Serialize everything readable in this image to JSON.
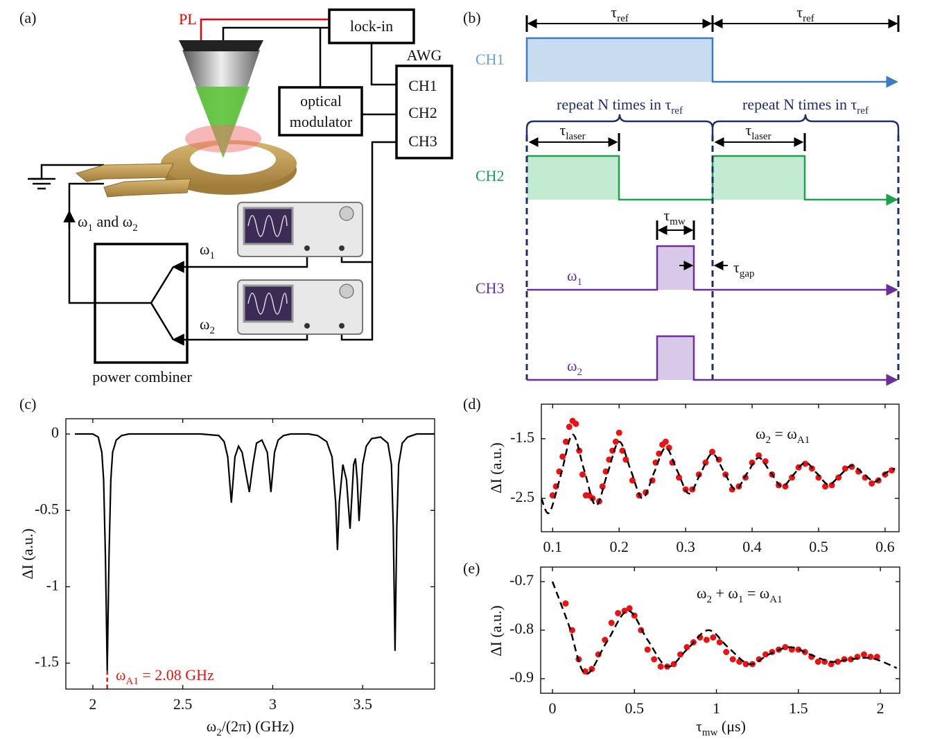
{
  "panels": [
    "(a)",
    "(b)",
    "(c)",
    "(d)",
    "(e)"
  ],
  "setup": {
    "pl": "PL",
    "lockin": "lock-in",
    "awg": "AWG",
    "channels": [
      "CH1",
      "CH2",
      "CH3"
    ],
    "modulator": [
      "optical",
      "modulator"
    ],
    "input": [
      "ω",
      "1",
      " and ω",
      "2"
    ],
    "omega1": [
      "ω",
      "1"
    ],
    "omega2": [
      "ω",
      "2"
    ],
    "combiner": "power combiner"
  },
  "timing": {
    "tau_ref": [
      "τ",
      "ref"
    ],
    "channels": [
      "CH1",
      "CH2",
      "CH3"
    ],
    "repeat": [
      "repeat N times in τ",
      "ref"
    ],
    "tau_laser": [
      "τ",
      "laser"
    ],
    "tau_mw": [
      "τ",
      "mw"
    ],
    "tau_gap": [
      "τ",
      "gap"
    ],
    "omega1": [
      "ω",
      "1"
    ],
    "omega2": [
      "ω",
      "2"
    ]
  },
  "chart_data": [
    {
      "type": "line",
      "xlabel": [
        "ω",
        "2",
        "/(2π) (GHz)"
      ],
      "ylabel": "ΔI (a.u.)",
      "annotation": [
        "ω",
        "A1",
        " = 2.08 GHz"
      ],
      "marker_x": 2.08,
      "annotation_color": "#e8140f",
      "xlim": [
        1.85,
        3.9
      ],
      "ylim": [
        -1.67,
        0.1
      ],
      "xticks": [
        2,
        2.5,
        3,
        3.5
      ],
      "yticks": [
        0,
        -0.5,
        -1,
        -1.5
      ],
      "series": [
        {
          "color": "#000000",
          "style": "solid",
          "x": [
            1.9,
            1.95,
            2.0,
            2.03,
            2.05,
            2.06,
            2.07,
            2.08,
            2.09,
            2.1,
            2.11,
            2.13,
            2.16,
            2.2,
            2.3,
            2.4,
            2.5,
            2.6,
            2.7,
            2.73,
            2.75,
            2.77,
            2.79,
            2.81,
            2.83,
            2.85,
            2.87,
            2.89,
            2.91,
            2.94,
            2.97,
            2.99,
            3.01,
            3.03,
            3.06,
            3.1,
            3.2,
            3.25,
            3.3,
            3.33,
            3.35,
            3.36,
            3.37,
            3.39,
            3.41,
            3.43,
            3.45,
            3.46,
            3.47,
            3.48,
            3.5,
            3.52,
            3.55,
            3.6,
            3.64,
            3.66,
            3.67,
            3.68,
            3.69,
            3.7,
            3.72,
            3.75,
            3.8,
            3.9
          ],
          "values": [
            0,
            0,
            0,
            -0.02,
            -0.12,
            -0.3,
            -0.8,
            -1.55,
            -0.8,
            -0.3,
            -0.12,
            -0.04,
            -0.01,
            0,
            0,
            0,
            0,
            0,
            -0.01,
            -0.05,
            -0.15,
            -0.45,
            -0.15,
            -0.08,
            -0.12,
            -0.25,
            -0.38,
            -0.2,
            -0.06,
            -0.04,
            -0.12,
            -0.38,
            -0.12,
            -0.04,
            -0.01,
            0,
            0,
            -0.01,
            -0.05,
            -0.15,
            -0.45,
            -0.76,
            -0.45,
            -0.2,
            -0.3,
            -0.62,
            -0.2,
            -0.16,
            -0.3,
            -0.57,
            -0.2,
            -0.08,
            -0.03,
            -0.02,
            -0.06,
            -0.2,
            -0.6,
            -1.42,
            -0.6,
            -0.2,
            -0.06,
            -0.02,
            0,
            0
          ]
        }
      ]
    },
    {
      "type": "scatter",
      "ylabel": "ΔI (a.u.)",
      "annotation": [
        "ω",
        "2",
        " = ω",
        "A1"
      ],
      "xlim": [
        0.083,
        0.621
      ],
      "ylim": [
        -3.06,
        -0.92
      ],
      "xticks": [
        0.1,
        0.2,
        0.3,
        0.4,
        0.5,
        0.6
      ],
      "yticks": [
        -1.5,
        -2.5
      ],
      "series": [
        {
          "color": "#ee1111",
          "style": "markers",
          "x": [
            0.1,
            0.105,
            0.11,
            0.115,
            0.12,
            0.125,
            0.13,
            0.135,
            0.14,
            0.145,
            0.15,
            0.155,
            0.16,
            0.17,
            0.175,
            0.18,
            0.185,
            0.19,
            0.195,
            0.2,
            0.205,
            0.21,
            0.22,
            0.23,
            0.24,
            0.25,
            0.255,
            0.26,
            0.265,
            0.27,
            0.275,
            0.28,
            0.29,
            0.3,
            0.31,
            0.32,
            0.33,
            0.34,
            0.35,
            0.36,
            0.37,
            0.38,
            0.39,
            0.4,
            0.41,
            0.42,
            0.43,
            0.44,
            0.45,
            0.46,
            0.47,
            0.48,
            0.49,
            0.5,
            0.51,
            0.52,
            0.53,
            0.54,
            0.55,
            0.56,
            0.57,
            0.58,
            0.59,
            0.6,
            0.61
          ],
          "values": [
            -2.45,
            -2.3,
            -2.05,
            -1.8,
            -1.55,
            -1.3,
            -1.2,
            -1.25,
            -1.7,
            -2.1,
            -2.45,
            -2.45,
            -2.5,
            -2.55,
            -2.3,
            -2.05,
            -1.85,
            -1.7,
            -1.55,
            -1.4,
            -1.7,
            -1.85,
            -2.2,
            -2.45,
            -2.4,
            -2.2,
            -1.9,
            -1.75,
            -1.6,
            -1.55,
            -1.65,
            -1.9,
            -2.15,
            -2.35,
            -2.35,
            -2.1,
            -1.9,
            -1.72,
            -1.85,
            -2.1,
            -2.35,
            -2.3,
            -2.15,
            -1.9,
            -1.78,
            -1.88,
            -2.1,
            -2.28,
            -2.3,
            -2.15,
            -1.98,
            -1.92,
            -2.0,
            -2.15,
            -2.3,
            -2.28,
            -2.15,
            -2.0,
            -1.97,
            -2.05,
            -2.15,
            -2.25,
            -2.2,
            -2.1,
            -2.03
          ]
        },
        {
          "color": "#000000",
          "style": "dashed",
          "x": [
            0.083,
            0.095,
            0.1125,
            0.13,
            0.1475,
            0.165,
            0.1825,
            0.2,
            0.2175,
            0.235,
            0.2525,
            0.27,
            0.2875,
            0.305,
            0.3225,
            0.34,
            0.3575,
            0.375,
            0.3925,
            0.41,
            0.4275,
            0.445,
            0.4625,
            0.48,
            0.4975,
            0.515,
            0.5325,
            0.55,
            0.5675,
            0.585,
            0.6,
            0.615
          ],
          "values": [
            -2.5,
            -2.74,
            -2.1,
            -1.43,
            -2.03,
            -2.62,
            -2.08,
            -1.55,
            -2.03,
            -2.5,
            -2.07,
            -1.65,
            -2.04,
            -2.42,
            -2.08,
            -1.75,
            -2.05,
            -2.35,
            -2.08,
            -1.82,
            -2.06,
            -2.3,
            -2.1,
            -1.9,
            -2.08,
            -2.27,
            -2.11,
            -1.95,
            -2.09,
            -2.22,
            -2.08,
            -2.0
          ]
        }
      ]
    },
    {
      "type": "scatter",
      "xlabel": [
        "τ",
        "mw",
        " (μs)"
      ],
      "ylabel": "ΔI (a.u.)",
      "annotation": [
        "ω",
        "2",
        " + ω",
        "1",
        " = ω",
        "A1"
      ],
      "xlim": [
        -0.072,
        2.118
      ],
      "ylim": [
        -0.93,
        -0.67
      ],
      "xticks": [
        0,
        0.5,
        1,
        1.5,
        2
      ],
      "yticks": [
        -0.7,
        -0.8,
        -0.9
      ],
      "series": [
        {
          "color": "#ee1111",
          "style": "markers",
          "x": [
            0.08,
            0.12,
            0.16,
            0.2,
            0.24,
            0.28,
            0.32,
            0.36,
            0.4,
            0.44,
            0.47,
            0.5,
            0.54,
            0.58,
            0.62,
            0.66,
            0.7,
            0.74,
            0.78,
            0.82,
            0.86,
            0.9,
            0.94,
            0.98,
            1.02,
            1.06,
            1.1,
            1.14,
            1.18,
            1.22,
            1.26,
            1.3,
            1.34,
            1.38,
            1.42,
            1.46,
            1.5,
            1.54,
            1.58,
            1.62,
            1.66,
            1.7,
            1.74,
            1.78,
            1.82,
            1.86,
            1.9,
            1.94,
            1.98
          ],
          "values": [
            -0.745,
            -0.8,
            -0.86,
            -0.885,
            -0.88,
            -0.85,
            -0.82,
            -0.785,
            -0.765,
            -0.76,
            -0.755,
            -0.77,
            -0.8,
            -0.84,
            -0.86,
            -0.875,
            -0.875,
            -0.87,
            -0.85,
            -0.835,
            -0.825,
            -0.815,
            -0.82,
            -0.815,
            -0.825,
            -0.845,
            -0.86,
            -0.865,
            -0.87,
            -0.87,
            -0.86,
            -0.85,
            -0.845,
            -0.84,
            -0.835,
            -0.84,
            -0.84,
            -0.845,
            -0.855,
            -0.865,
            -0.865,
            -0.87,
            -0.865,
            -0.86,
            -0.86,
            -0.855,
            -0.85,
            -0.855,
            -0.855
          ]
        },
        {
          "color": "#000000",
          "style": "dashed",
          "x": [
            0,
            0.1,
            0.2,
            0.33,
            0.46,
            0.58,
            0.7,
            0.82,
            0.95,
            1.07,
            1.2,
            1.32,
            1.45,
            1.57,
            1.7,
            1.82,
            1.95,
            2.1
          ],
          "values": [
            -0.7,
            -0.79,
            -0.89,
            -0.825,
            -0.76,
            -0.82,
            -0.875,
            -0.84,
            -0.8,
            -0.835,
            -0.87,
            -0.85,
            -0.835,
            -0.85,
            -0.865,
            -0.86,
            -0.858,
            -0.878
          ]
        }
      ]
    }
  ]
}
